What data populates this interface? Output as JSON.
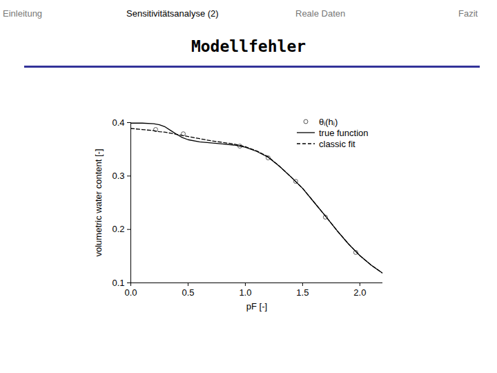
{
  "slide": {
    "nav": [
      "Einleitung",
      "Sensitivitätsanalyse (2)",
      "Reale Daten",
      "Fazit"
    ],
    "active_nav": "Sensitivitätsanalyse (2)",
    "title": "Modellfehler"
  },
  "chart_data": {
    "type": "line",
    "xlabel": "pF [-]",
    "ylabel": "volumetric water content [-]",
    "xlim": [
      0,
      2.2
    ],
    "ylim": [
      0.1,
      0.4
    ],
    "xticks": [
      {
        "value": 0,
        "label": "0.0"
      },
      {
        "value": 0.5,
        "label": "0.5"
      },
      {
        "value": 1,
        "label": "1.0"
      },
      {
        "value": 1.5,
        "label": "1.5"
      },
      {
        "value": 2,
        "label": "2.0"
      }
    ],
    "yticks": [
      0.1,
      0.2,
      0.3,
      0.4
    ],
    "grid": false,
    "legend": "upper right",
    "series": [
      {
        "name": "θᵢ(hᵢ)",
        "type": "scatter",
        "marker": "circle",
        "color": "#555555",
        "x": [
          0.217,
          0.458,
          0.952,
          1.199,
          1.44,
          1.699,
          1.964
        ],
        "values": [
          0.387,
          0.379,
          0.356,
          0.334,
          0.29,
          0.223,
          0.157
        ]
      },
      {
        "name": "true function",
        "type": "line",
        "line_style": "solid",
        "color": "#000000",
        "x": [
          0,
          0.1,
          0.2,
          0.25,
          0.3,
          0.35,
          0.4,
          0.45,
          0.5,
          0.6,
          0.7,
          0.8,
          0.9,
          1.0,
          1.1,
          1.2,
          1.3,
          1.4,
          1.5,
          1.6,
          1.7,
          1.8,
          1.9,
          2.0,
          2.1,
          2.2
        ],
        "values": [
          0.399,
          0.399,
          0.398,
          0.396,
          0.392,
          0.385,
          0.378,
          0.372,
          0.368,
          0.364,
          0.362,
          0.36,
          0.358,
          0.354,
          0.346,
          0.335,
          0.318,
          0.298,
          0.277,
          0.251,
          0.225,
          0.198,
          0.173,
          0.151,
          0.133,
          0.118
        ]
      },
      {
        "name": "classic fit",
        "type": "line",
        "line_style": "dashed",
        "color": "#000000",
        "x": [
          0,
          0.1,
          0.2,
          0.25,
          0.3,
          0.35,
          0.4,
          0.45,
          0.5,
          0.6,
          0.7,
          0.8,
          0.9,
          1.0,
          1.1,
          1.2,
          1.3,
          1.4,
          1.5,
          1.6,
          1.7,
          1.8,
          1.9,
          2.0,
          2.1,
          2.2
        ],
        "values": [
          0.389,
          0.387,
          0.385,
          0.383,
          0.382,
          0.38,
          0.378,
          0.376,
          0.374,
          0.37,
          0.366,
          0.363,
          0.36,
          0.355,
          0.347,
          0.336,
          0.318,
          0.298,
          0.277,
          0.251,
          0.225,
          0.198,
          0.173,
          0.151,
          0.133,
          0.118
        ]
      }
    ]
  }
}
